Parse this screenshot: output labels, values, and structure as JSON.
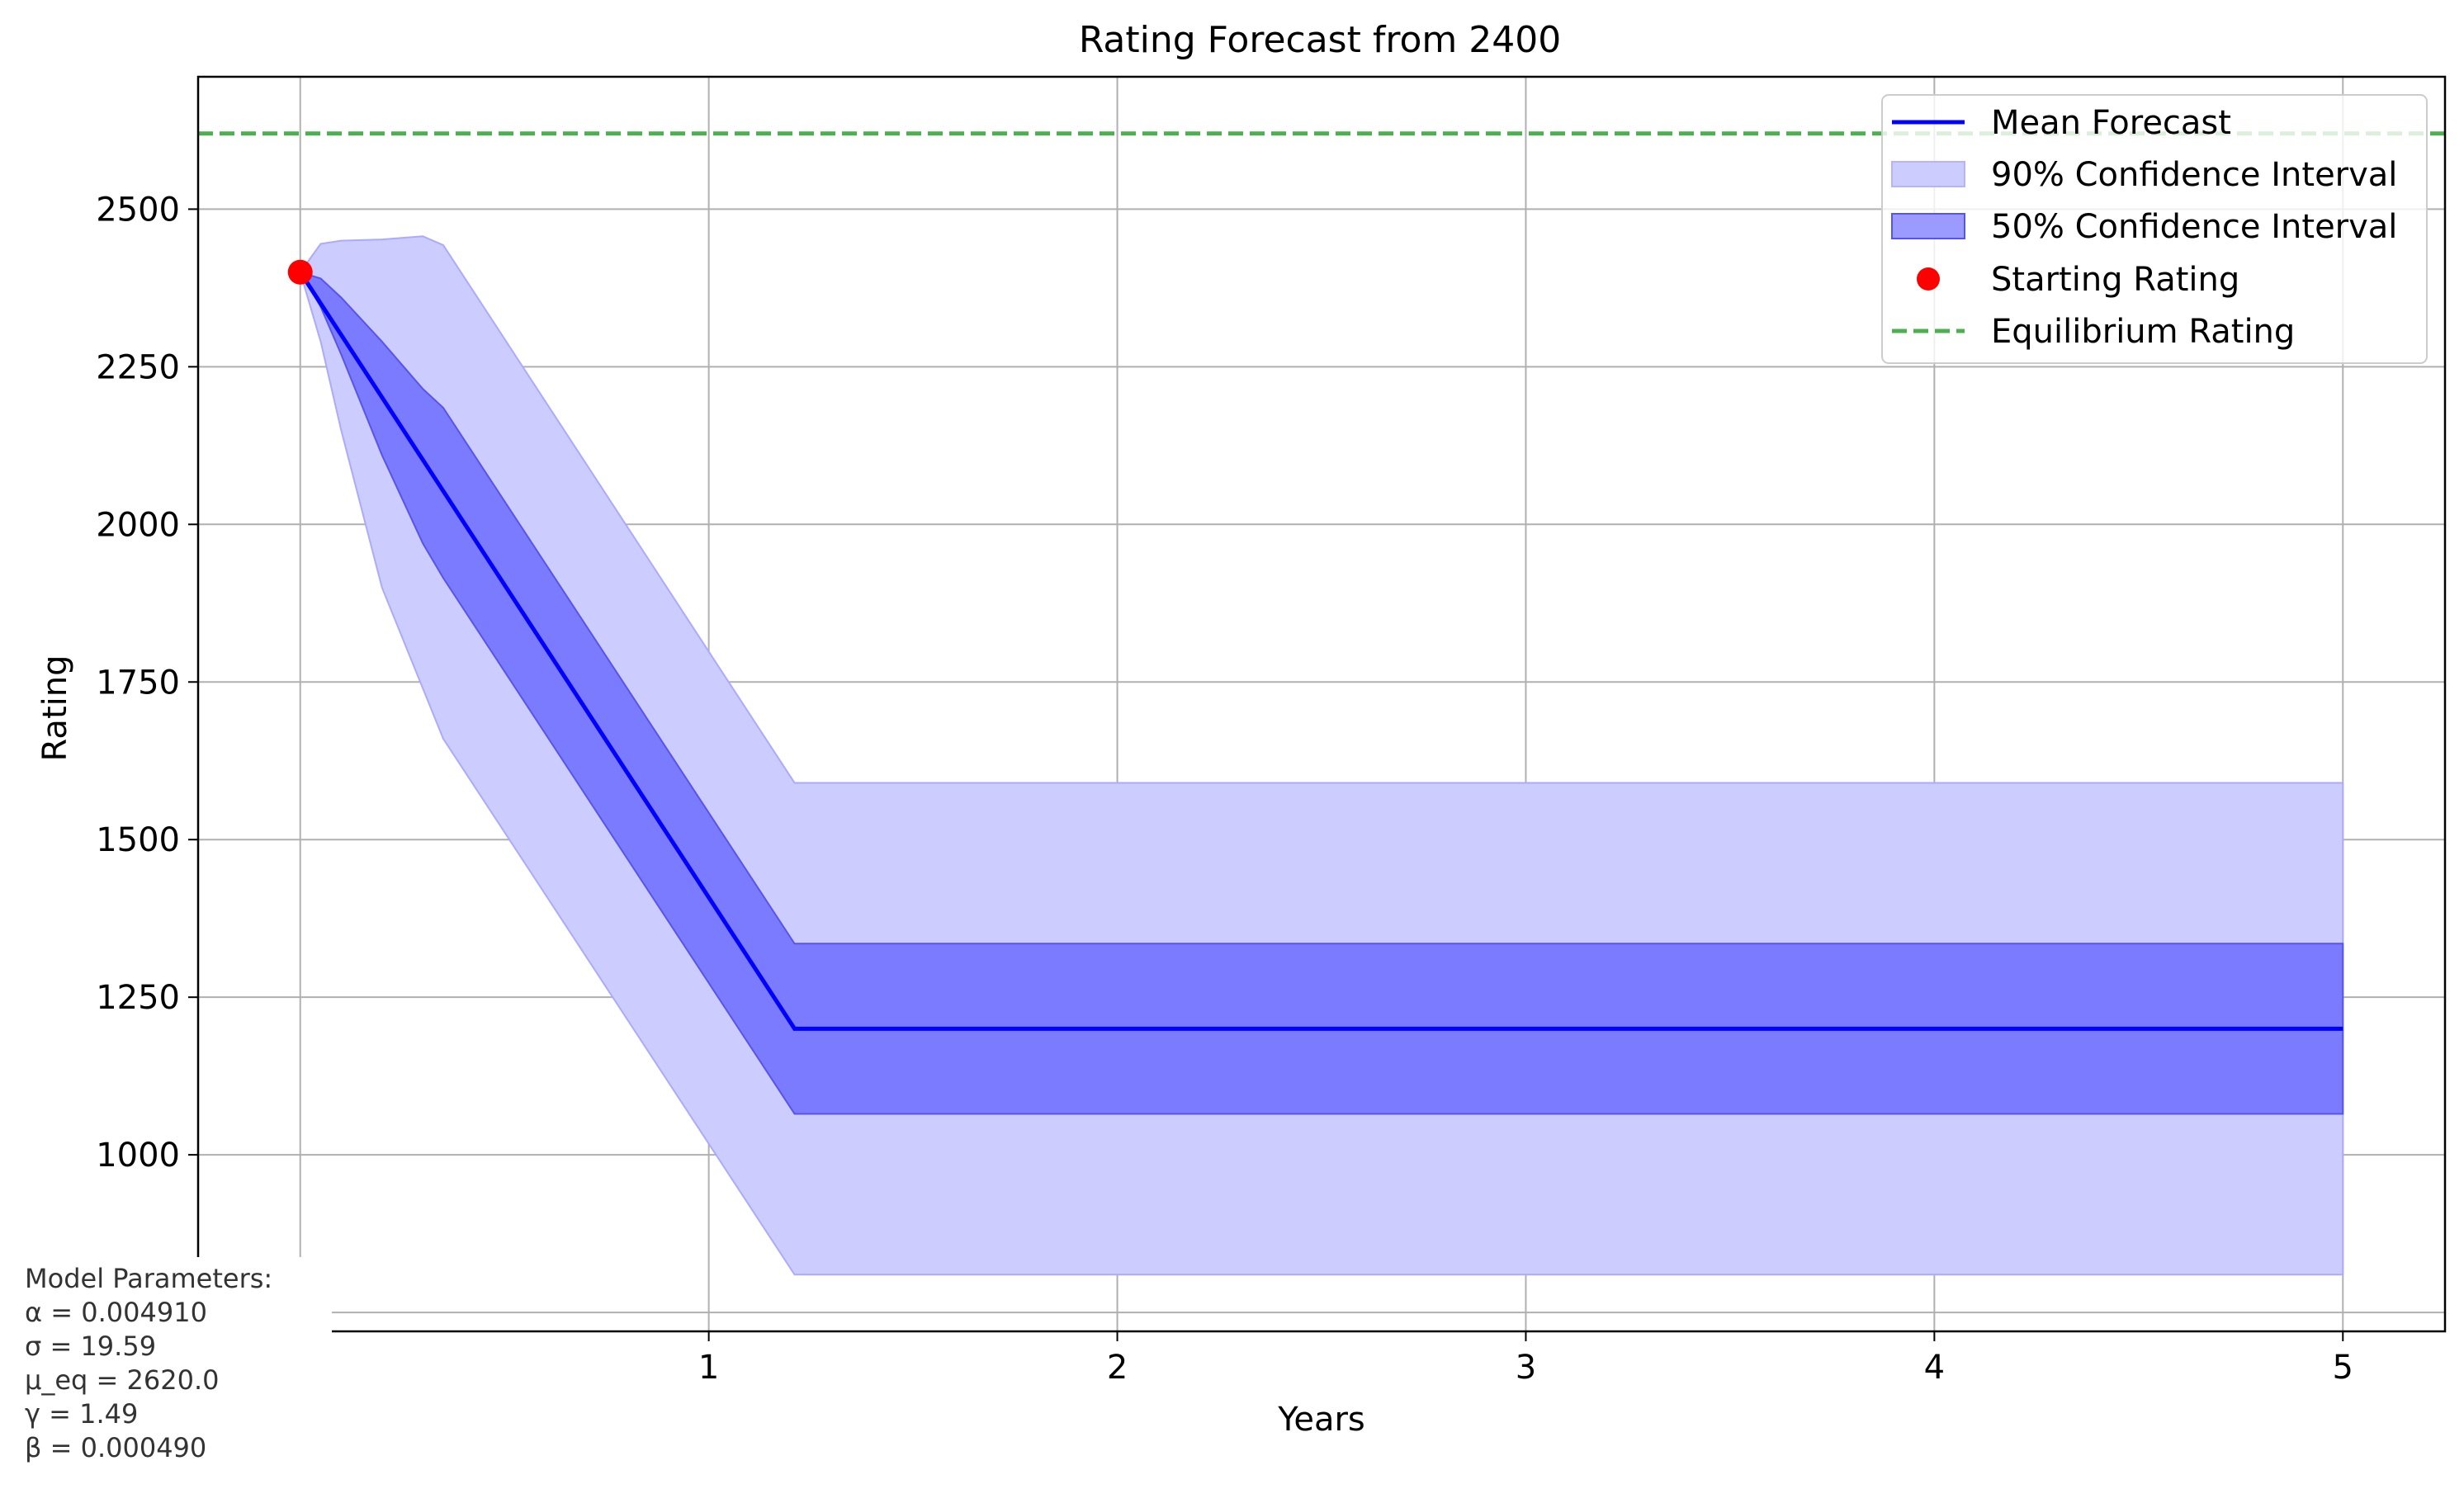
{
  "chart_data": {
    "type": "line",
    "title": "Rating Forecast from 2400",
    "xlabel": "Years",
    "ylabel": "Rating",
    "xlim": [
      -0.25,
      5.25
    ],
    "ylim": [
      720,
      2710
    ],
    "x_ticks": [
      1,
      2,
      3,
      4,
      5
    ],
    "y_ticks": [
      1000,
      1250,
      1500,
      1750,
      2000,
      2250,
      2500
    ],
    "grid": true,
    "legend_position": "top-right",
    "series": [
      {
        "name": "Mean Forecast",
        "kind": "line",
        "color": "#0000ff",
        "x": [
          0,
          1.21,
          5
        ],
        "y": [
          2400,
          1200,
          1200
        ]
      },
      {
        "name": "90% Confidence Interval",
        "kind": "band",
        "color": "#ccccff",
        "x": [
          0,
          0.05,
          0.1,
          0.2,
          0.3,
          0.35,
          1.21,
          5
        ],
        "lower": [
          2400,
          2290,
          2150,
          1900,
          1740,
          1660,
          810,
          810
        ],
        "upper": [
          2400,
          2445,
          2450,
          2452,
          2457,
          2443,
          1590,
          1590
        ]
      },
      {
        "name": "50% Confidence Interval",
        "kind": "band",
        "color": "#7b7bff",
        "x": [
          0,
          0.05,
          0.1,
          0.2,
          0.3,
          0.35,
          1.21,
          5
        ],
        "lower": [
          2400,
          2345,
          2270,
          2110,
          1970,
          1915,
          1065,
          1065
        ],
        "upper": [
          2400,
          2390,
          2360,
          2290,
          2215,
          2185,
          1335,
          1335
        ]
      },
      {
        "name": "Starting Rating",
        "kind": "point",
        "color": "#ff0000",
        "x": [
          0
        ],
        "y": [
          2400
        ]
      },
      {
        "name": "Equilibrium Rating",
        "kind": "hline",
        "color": "#4caf50",
        "y": 2620
      }
    ]
  },
  "params": {
    "heading": "Model Parameters:",
    "lines": [
      "α = 0.004910",
      "σ = 19.59",
      "μ_eq = 2620.0",
      "γ = 1.49",
      "β = 0.000490"
    ]
  }
}
